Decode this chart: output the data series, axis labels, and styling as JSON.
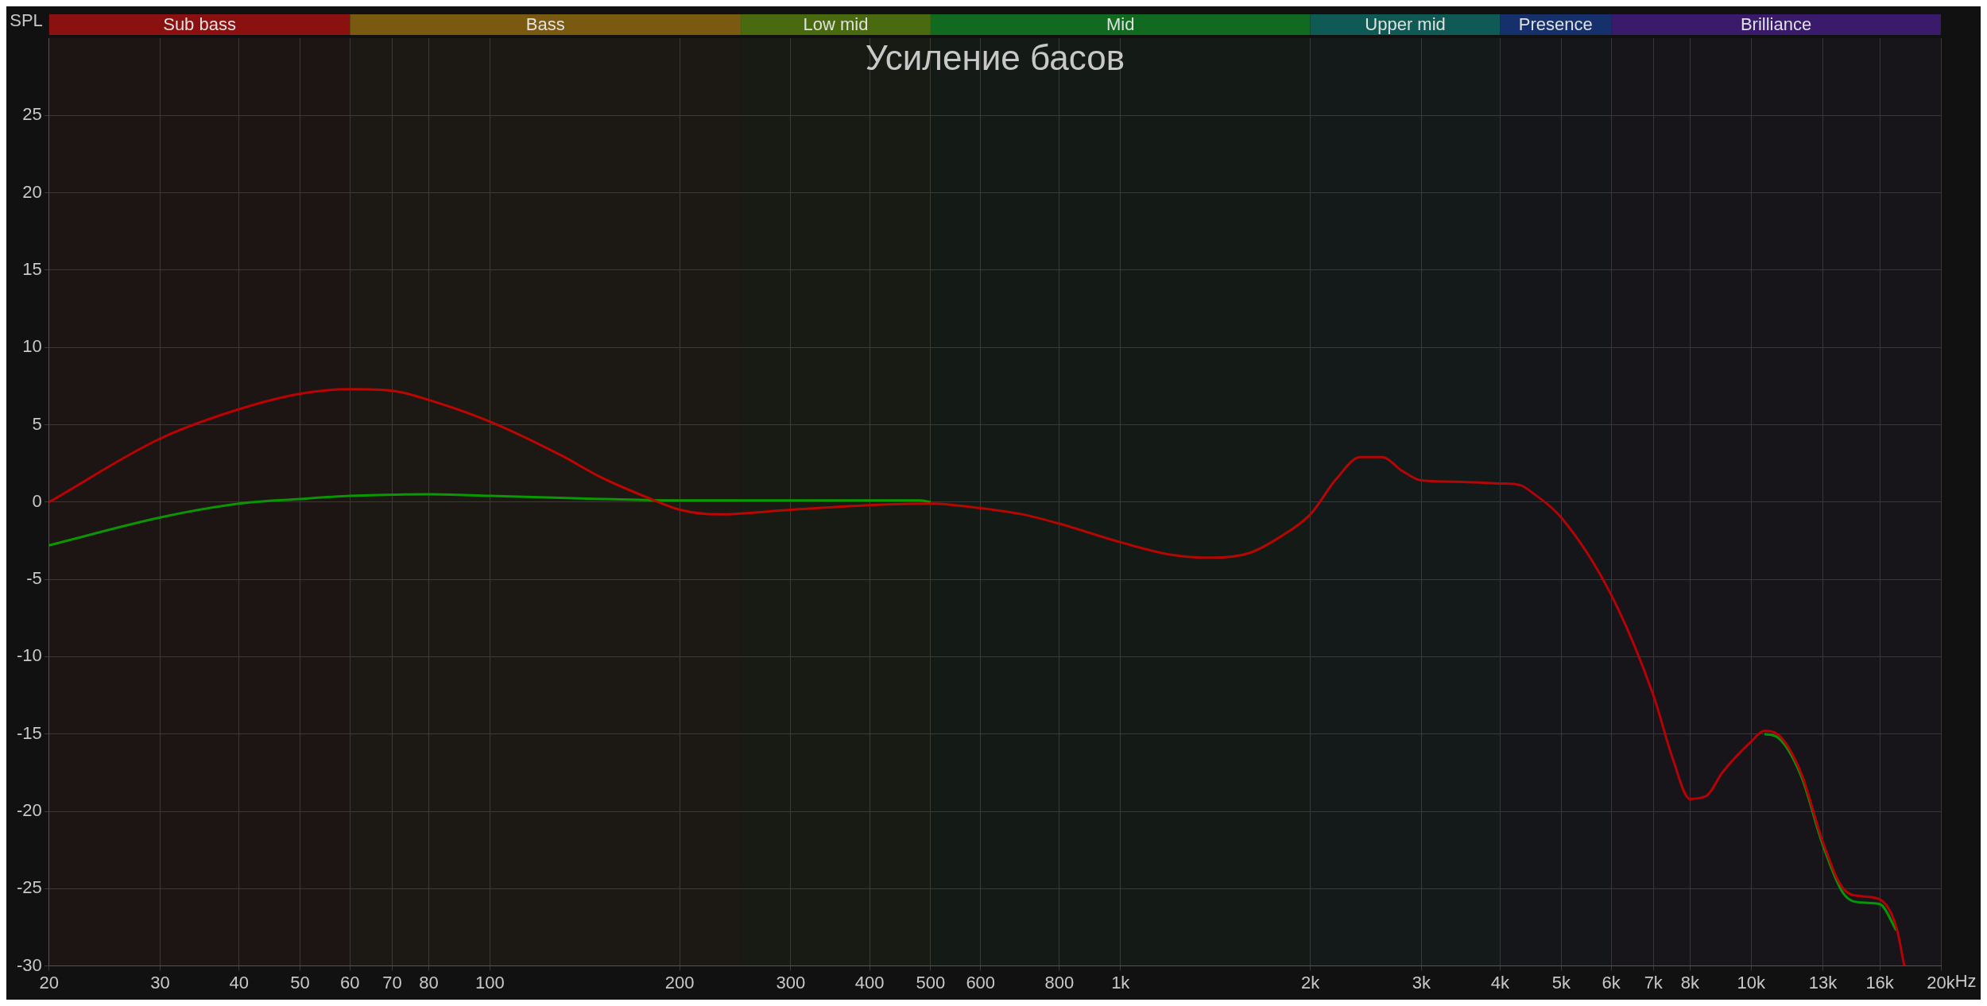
{
  "chart_data": {
    "type": "line",
    "title": "Усиление басов",
    "ylabel": "SPL",
    "log": "x",
    "grid": true,
    "legend": false,
    "marker": "none",
    "line_style": "solid",
    "xlim": [
      20,
      20000
    ],
    "ylim": [
      -30,
      30
    ],
    "xticks": [
      20,
      30,
      40,
      50,
      60,
      70,
      80,
      100,
      200,
      300,
      400,
      500,
      600,
      800,
      {
        "value": 1000,
        "label": "1k"
      },
      {
        "value": 2000,
        "label": "2k"
      },
      {
        "value": 3000,
        "label": "3k"
      },
      {
        "value": 4000,
        "label": "4k"
      },
      {
        "value": 5000,
        "label": "5k"
      },
      {
        "value": 6000,
        "label": "6k"
      },
      {
        "value": 7000,
        "label": "7k"
      },
      {
        "value": 8000,
        "label": "8k"
      },
      {
        "value": 10000,
        "label": "10k"
      },
      {
        "value": 13000,
        "label": "13k"
      },
      {
        "value": 16000,
        "label": "16k"
      },
      {
        "value": 20000,
        "label": "20k"
      }
    ],
    "xlabel": "Hz",
    "yticks": [
      -30,
      -25,
      -20,
      -15,
      -10,
      -5,
      0,
      5,
      10,
      15,
      20,
      25
    ],
    "bands": [
      {
        "axis": "x",
        "from": 20,
        "to": 60,
        "label": "Sub bass",
        "color": "#8b1010"
      },
      {
        "axis": "x",
        "from": 60,
        "to": 250,
        "label": "Bass",
        "color": "#7a5a10"
      },
      {
        "axis": "x",
        "from": 250,
        "to": 500,
        "label": "Low mid",
        "color": "#4a6a10"
      },
      {
        "axis": "x",
        "from": 500,
        "to": 2000,
        "label": "Mid",
        "color": "#106a20"
      },
      {
        "axis": "x",
        "from": 2000,
        "to": 4000,
        "label": "Upper mid",
        "color": "#105a55"
      },
      {
        "axis": "x",
        "from": 4000,
        "to": 6000,
        "label": "Presence",
        "color": "#15306a"
      },
      {
        "axis": "x",
        "from": 6000,
        "to": 20000,
        "label": "Brilliance",
        "color": "#3a1a6a"
      }
    ],
    "series": [
      {
        "color": "#c00000",
        "x": [
          20,
          30,
          40,
          50,
          60,
          70,
          80,
          100,
          130,
          150,
          180,
          200,
          230,
          300,
          400,
          500,
          600,
          700,
          800,
          1000,
          1200,
          1400,
          1600,
          1800,
          2000,
          2200,
          2400,
          2600,
          2800,
          3000,
          3500,
          4000,
          4300,
          4500,
          5000,
          6000,
          7000,
          7500,
          8000,
          8500,
          9000,
          10000,
          10500,
          11000,
          12000,
          13000,
          14000,
          15000,
          16000,
          17000,
          17500
        ],
        "values": [
          0,
          4.1,
          6.0,
          7.0,
          7.3,
          7.2,
          6.6,
          5.2,
          3.0,
          1.6,
          0.2,
          -0.5,
          -0.8,
          -0.5,
          -0.2,
          -0.1,
          -0.4,
          -0.8,
          -1.4,
          -2.6,
          -3.4,
          -3.6,
          -3.3,
          -2.2,
          -0.8,
          1.5,
          2.9,
          2.9,
          2.0,
          1.4,
          1.3,
          1.2,
          1.1,
          0.6,
          -1.0,
          -6.0,
          -12.5,
          -16.5,
          -19.2,
          -19.0,
          -17.5,
          -15.5,
          -14.8,
          -15.0,
          -17.5,
          -22,
          -25,
          -25.5,
          -25.7,
          -27.5,
          -30
        ]
      },
      {
        "color": "#00a000",
        "x": [
          20,
          30,
          40,
          50,
          60,
          80,
          100,
          150,
          200,
          300,
          400,
          480,
          500,
          600,
          700,
          800,
          1000,
          1200,
          1400,
          1600,
          1800,
          2000,
          2200,
          2400,
          2600,
          2800,
          3000,
          3500,
          4000,
          4300,
          4500,
          5000,
          6000,
          7000,
          7500,
          8000,
          8500,
          9000,
          10000,
          10500,
          11000,
          12000,
          13000,
          14000,
          15000,
          16000,
          17000
        ],
        "values": [
          -2.8,
          -1.0,
          -0.1,
          0.2,
          0.4,
          0.5,
          0.4,
          0.2,
          0.1,
          0.1,
          0.1,
          0.1,
          0,
          null,
          null,
          null,
          null,
          null,
          null,
          null,
          null,
          null,
          null,
          null,
          null,
          null,
          null,
          null,
          null,
          null,
          null,
          null,
          null,
          null,
          null,
          null,
          null,
          null,
          null,
          -15.0,
          -15.2,
          -17.7,
          -22.2,
          -25.3,
          -25.9,
          -26.0,
          -27.7
        ]
      }
    ]
  }
}
